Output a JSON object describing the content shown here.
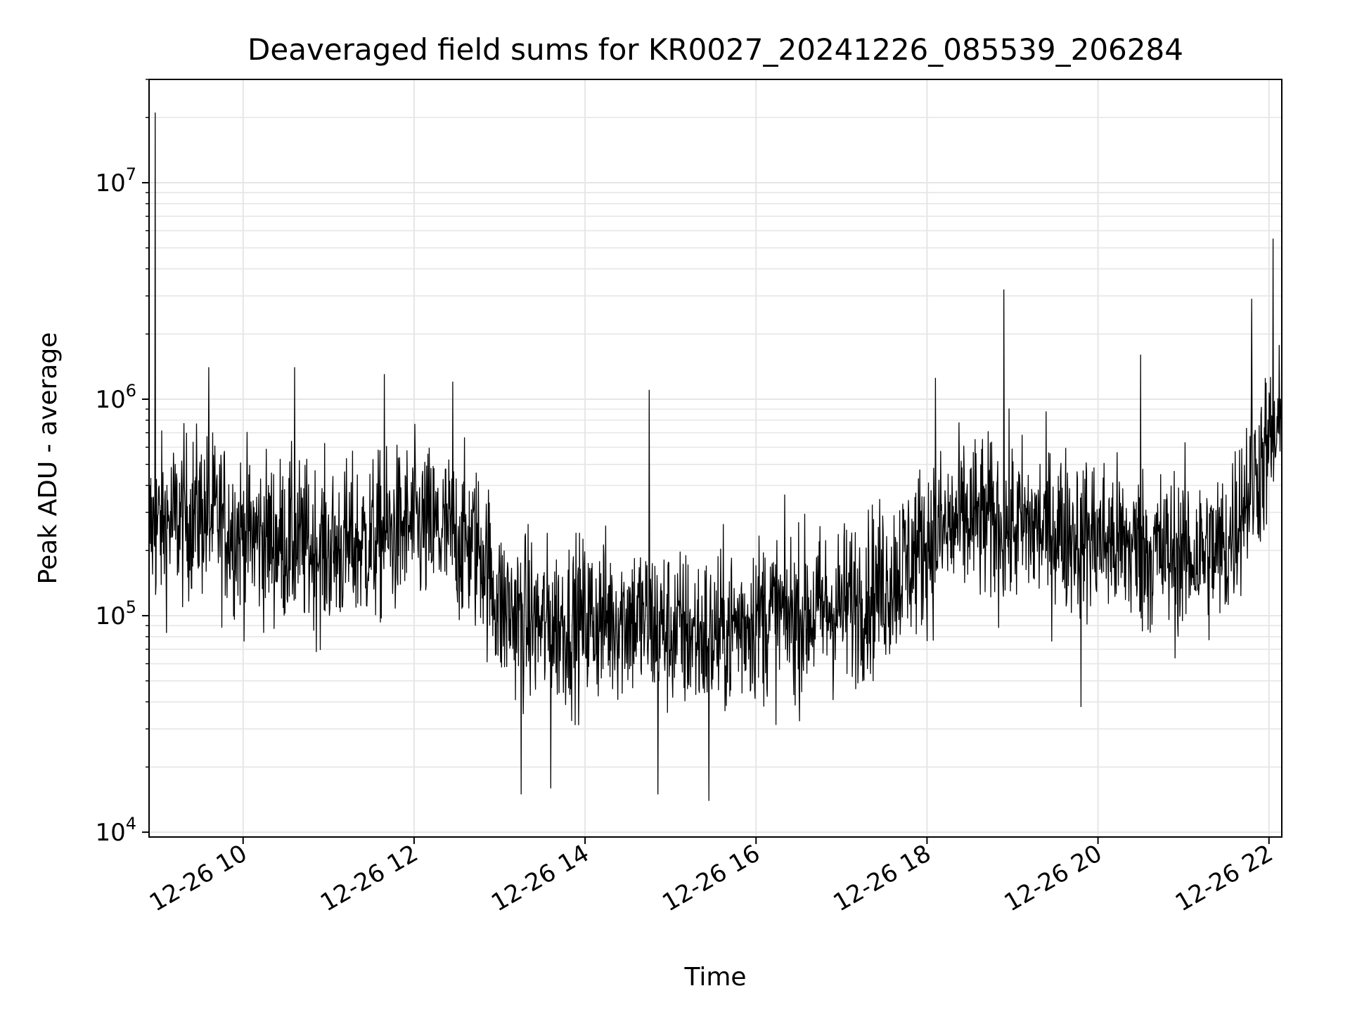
{
  "chart_data": {
    "type": "line",
    "title": "Deaveraged field sums for KR0027_20241226_085539_206284",
    "xlabel": "Time",
    "ylabel": "Peak ADU - average",
    "yscale": "log",
    "ylim": [
      9500,
      30000000
    ],
    "xlim_hours": [
      8.9,
      22.15
    ],
    "grid": true,
    "line_color": "#000000",
    "grid_color": "#e6e6e6",
    "x_ticks": [
      {
        "hour": 10,
        "label": "12-26 10"
      },
      {
        "hour": 12,
        "label": "12-26 12"
      },
      {
        "hour": 14,
        "label": "12-26 14"
      },
      {
        "hour": 16,
        "label": "12-26 16"
      },
      {
        "hour": 18,
        "label": "12-26 18"
      },
      {
        "hour": 20,
        "label": "12-26 20"
      },
      {
        "hour": 22,
        "label": "12-26 22"
      }
    ],
    "y_ticks": [
      {
        "value": 10000,
        "base": "10",
        "exp": "4"
      },
      {
        "value": 100000,
        "base": "10",
        "exp": "5"
      },
      {
        "value": 1000000,
        "base": "10",
        "exp": "6"
      },
      {
        "value": 10000000,
        "base": "10",
        "exp": "7"
      }
    ],
    "series": [
      {
        "hours": [
          8.9,
          9.5,
          10.0,
          10.5,
          11.0,
          11.5,
          12.0,
          12.5,
          12.8,
          13.0,
          13.5,
          14.0,
          14.5,
          15.0,
          15.5,
          16.0,
          16.5,
          17.0,
          17.5,
          18.0,
          18.5,
          19.0,
          19.5,
          20.0,
          20.5,
          21.0,
          21.5,
          21.7,
          22.0,
          22.15
        ],
        "median": [
          250000,
          300000,
          240000,
          220000,
          200000,
          220000,
          260000,
          230000,
          200000,
          110000,
          90000,
          95000,
          100000,
          85000,
          80000,
          100000,
          100000,
          110000,
          140000,
          220000,
          280000,
          260000,
          250000,
          230000,
          200000,
          190000,
          200000,
          350000,
          600000,
          700000
        ]
      }
    ],
    "spikes": [
      {
        "hour": 8.97,
        "value": 21000000
      },
      {
        "hour": 18.9,
        "value": 3200000
      },
      {
        "hour": 22.05,
        "value": 5500000
      },
      {
        "hour": 21.8,
        "value": 2900000
      },
      {
        "hour": 9.6,
        "value": 1400000
      },
      {
        "hour": 10.6,
        "value": 1400000
      },
      {
        "hour": 11.65,
        "value": 1300000
      },
      {
        "hour": 12.45,
        "value": 1200000
      },
      {
        "hour": 14.75,
        "value": 1100000
      },
      {
        "hour": 18.1,
        "value": 1250000
      },
      {
        "hour": 20.5,
        "value": 1600000
      },
      {
        "hour": 13.25,
        "value": 15000
      },
      {
        "hour": 14.85,
        "value": 15000
      },
      {
        "hour": 15.45,
        "value": 14000
      },
      {
        "hour": 13.6,
        "value": 16000
      },
      {
        "hour": 19.8,
        "value": 38000
      }
    ]
  }
}
